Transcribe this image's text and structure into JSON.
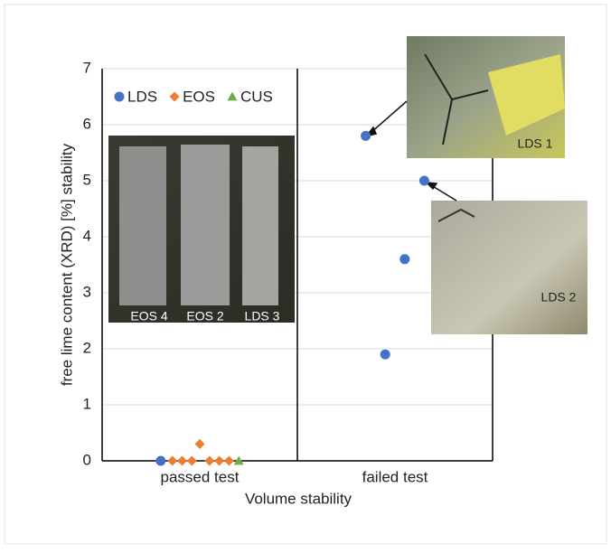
{
  "chart_data": {
    "type": "scatter",
    "x_label": "Volume stability",
    "y_label": "free lime content (XRD) [%] stability",
    "xlim": [
      0,
      2
    ],
    "xticks": [
      {
        "value": 0.5,
        "label": "passed test"
      },
      {
        "value": 1.5,
        "label": "failed test"
      }
    ],
    "ylim": [
      0,
      7
    ],
    "yticks": [
      0,
      1,
      2,
      3,
      4,
      5,
      6,
      7
    ],
    "grid": true,
    "legend": "upper left",
    "series": [
      {
        "name": "LDS",
        "color": "#4472c4",
        "marker": "circle",
        "x": [
          0.3,
          1.35,
          1.65,
          1.55,
          1.45
        ],
        "values": [
          0,
          5.8,
          5.0,
          3.6,
          1.9
        ]
      },
      {
        "name": "EOS",
        "color": "#ed7d31",
        "marker": "diamond",
        "x": [
          0.36,
          0.41,
          0.46,
          0.5,
          0.55,
          0.6,
          0.65
        ],
        "values": [
          0,
          0,
          0,
          0.3,
          0,
          0,
          0
        ]
      },
      {
        "name": "CUS",
        "color": "#70ad47",
        "marker": "triangle",
        "x": [
          0.7
        ],
        "values": [
          0
        ]
      }
    ],
    "photos": [
      {
        "labels": [
          "EOS 4",
          "EOS 2",
          "LDS 3"
        ]
      },
      {
        "labels": [
          "LDS 1"
        ]
      },
      {
        "labels": [
          "LDS 2"
        ]
      }
    ]
  }
}
